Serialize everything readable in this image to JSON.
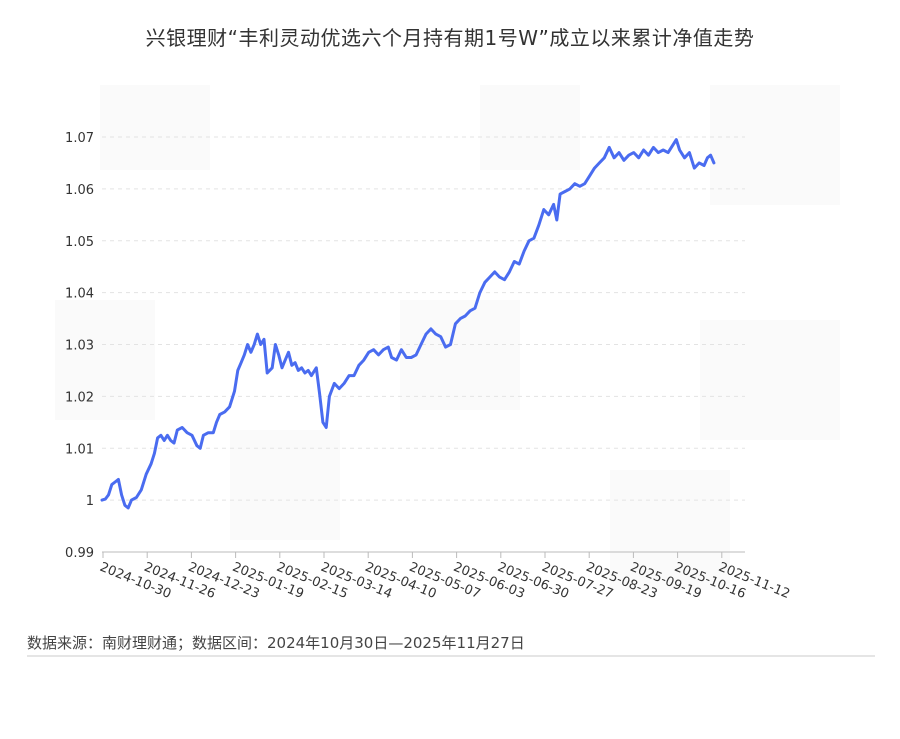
{
  "chart_data": {
    "type": "line",
    "title": "兴银理财“丰利灵动优选六个月持有期1号W”成立以来累计净值走势",
    "xlabel": "",
    "ylabel": "",
    "x_ticks": [
      "2024-10-30",
      "2024-11-26",
      "2024-12-23",
      "2025-01-19",
      "2025-02-15",
      "2025-03-14",
      "2025-04-10",
      "2025-05-07",
      "2025-06-03",
      "2025-06-30",
      "2025-07-27",
      "2025-08-23",
      "2025-09-19",
      "2025-10-16",
      "2025-11-12"
    ],
    "y_ticks": [
      "0.99",
      "1",
      "1.01",
      "1.02",
      "1.03",
      "1.04",
      "1.05",
      "1.06",
      "1.07"
    ],
    "ylim": [
      0.99,
      1.07
    ],
    "xlim": [
      "2024-10-30",
      "2025-11-27"
    ],
    "grid": true,
    "legend": "none",
    "line_color": "#4a6cf0",
    "series": [
      {
        "points": [
          [
            "2024-10-30",
            1.0
          ],
          [
            "2024-11-01",
            1.0002
          ],
          [
            "2024-11-03",
            1.001
          ],
          [
            "2024-11-05",
            1.003
          ],
          [
            "2024-11-07",
            1.0035
          ],
          [
            "2024-11-09",
            1.004
          ],
          [
            "2024-11-11",
            1.001
          ],
          [
            "2024-11-13",
            0.999
          ],
          [
            "2024-11-15",
            0.9985
          ],
          [
            "2024-11-17",
            1.0
          ],
          [
            "2024-11-20",
            1.0005
          ],
          [
            "2024-11-23",
            1.002
          ],
          [
            "2024-11-26",
            1.005
          ],
          [
            "2024-11-29",
            1.007
          ],
          [
            "2024-12-01",
            1.009
          ],
          [
            "2024-12-03",
            1.012
          ],
          [
            "2024-12-05",
            1.0125
          ],
          [
            "2024-12-07",
            1.0115
          ],
          [
            "2024-12-09",
            1.0125
          ],
          [
            "2024-12-11",
            1.0115
          ],
          [
            "2024-12-13",
            1.011
          ],
          [
            "2024-12-15",
            1.0135
          ],
          [
            "2024-12-18",
            1.014
          ],
          [
            "2024-12-21",
            1.013
          ],
          [
            "2024-12-24",
            1.0125
          ],
          [
            "2024-12-27",
            1.0105
          ],
          [
            "2024-12-29",
            1.01
          ],
          [
            "2024-12-31",
            1.0125
          ],
          [
            "2025-01-03",
            1.013
          ],
          [
            "2025-01-06",
            1.013
          ],
          [
            "2025-01-08",
            1.015
          ],
          [
            "2025-01-10",
            1.0165
          ],
          [
            "2025-01-13",
            1.017
          ],
          [
            "2025-01-16",
            1.018
          ],
          [
            "2025-01-19",
            1.021
          ],
          [
            "2025-01-21",
            1.025
          ],
          [
            "2025-01-23",
            1.0265
          ],
          [
            "2025-01-25",
            1.028
          ],
          [
            "2025-01-27",
            1.03
          ],
          [
            "2025-01-29",
            1.0285
          ],
          [
            "2025-01-31",
            1.03
          ],
          [
            "2025-02-02",
            1.032
          ],
          [
            "2025-02-04",
            1.03
          ],
          [
            "2025-02-06",
            1.031
          ],
          [
            "2025-02-08",
            1.0245
          ],
          [
            "2025-02-11",
            1.0255
          ],
          [
            "2025-02-13",
            1.03
          ],
          [
            "2025-02-15",
            1.028
          ],
          [
            "2025-02-17",
            1.0255
          ],
          [
            "2025-02-19",
            1.027
          ],
          [
            "2025-02-21",
            1.0285
          ],
          [
            "2025-02-23",
            1.026
          ],
          [
            "2025-02-25",
            1.0265
          ],
          [
            "2025-02-27",
            1.025
          ],
          [
            "2025-03-01",
            1.0255
          ],
          [
            "2025-03-03",
            1.0245
          ],
          [
            "2025-03-05",
            1.025
          ],
          [
            "2025-03-07",
            1.024
          ],
          [
            "2025-03-10",
            1.0255
          ],
          [
            "2025-03-12",
            1.0205
          ],
          [
            "2025-03-14",
            1.015
          ],
          [
            "2025-03-16",
            1.014
          ],
          [
            "2025-03-18",
            1.02
          ],
          [
            "2025-03-21",
            1.0225
          ],
          [
            "2025-03-24",
            1.0215
          ],
          [
            "2025-03-27",
            1.0225
          ],
          [
            "2025-03-30",
            1.024
          ],
          [
            "2025-04-02",
            1.024
          ],
          [
            "2025-04-05",
            1.026
          ],
          [
            "2025-04-08",
            1.027
          ],
          [
            "2025-04-11",
            1.0285
          ],
          [
            "2025-04-14",
            1.029
          ],
          [
            "2025-04-17",
            1.028
          ],
          [
            "2025-04-20",
            1.029
          ],
          [
            "2025-04-23",
            1.0295
          ],
          [
            "2025-04-25",
            1.0275
          ],
          [
            "2025-04-28",
            1.027
          ],
          [
            "2025-05-01",
            1.029
          ],
          [
            "2025-05-04",
            1.0275
          ],
          [
            "2025-05-07",
            1.0275
          ],
          [
            "2025-05-10",
            1.028
          ],
          [
            "2025-05-13",
            1.03
          ],
          [
            "2025-05-16",
            1.032
          ],
          [
            "2025-05-19",
            1.033
          ],
          [
            "2025-05-22",
            1.032
          ],
          [
            "2025-05-25",
            1.0315
          ],
          [
            "2025-05-28",
            1.0295
          ],
          [
            "2025-05-31",
            1.03
          ],
          [
            "2025-06-03",
            1.034
          ],
          [
            "2025-06-06",
            1.035
          ],
          [
            "2025-06-09",
            1.0355
          ],
          [
            "2025-06-12",
            1.0365
          ],
          [
            "2025-06-15",
            1.037
          ],
          [
            "2025-06-18",
            1.04
          ],
          [
            "2025-06-21",
            1.042
          ],
          [
            "2025-06-24",
            1.043
          ],
          [
            "2025-06-27",
            1.044
          ],
          [
            "2025-06-30",
            1.043
          ],
          [
            "2025-07-03",
            1.0425
          ],
          [
            "2025-07-06",
            1.044
          ],
          [
            "2025-07-09",
            1.046
          ],
          [
            "2025-07-12",
            1.0455
          ],
          [
            "2025-07-15",
            1.048
          ],
          [
            "2025-07-18",
            1.05
          ],
          [
            "2025-07-21",
            1.0505
          ],
          [
            "2025-07-24",
            1.053
          ],
          [
            "2025-07-27",
            1.056
          ],
          [
            "2025-07-30",
            1.055
          ],
          [
            "2025-08-02",
            1.057
          ],
          [
            "2025-08-04",
            1.054
          ],
          [
            "2025-08-06",
            1.059
          ],
          [
            "2025-08-09",
            1.0595
          ],
          [
            "2025-08-12",
            1.06
          ],
          [
            "2025-08-15",
            1.061
          ],
          [
            "2025-08-18",
            1.0605
          ],
          [
            "2025-08-21",
            1.061
          ],
          [
            "2025-08-24",
            1.0625
          ],
          [
            "2025-08-27",
            1.064
          ],
          [
            "2025-08-30",
            1.065
          ],
          [
            "2025-09-02",
            1.066
          ],
          [
            "2025-09-05",
            1.068
          ],
          [
            "2025-09-08",
            1.066
          ],
          [
            "2025-09-11",
            1.067
          ],
          [
            "2025-09-14",
            1.0655
          ],
          [
            "2025-09-17",
            1.0665
          ],
          [
            "2025-09-20",
            1.067
          ],
          [
            "2025-09-23",
            1.066
          ],
          [
            "2025-09-26",
            1.0675
          ],
          [
            "2025-09-29",
            1.0665
          ],
          [
            "2025-10-02",
            1.068
          ],
          [
            "2025-10-05",
            1.067
          ],
          [
            "2025-10-08",
            1.0675
          ],
          [
            "2025-10-11",
            1.067
          ],
          [
            "2025-10-14",
            1.0685
          ],
          [
            "2025-10-16",
            1.0695
          ],
          [
            "2025-10-18",
            1.0675
          ],
          [
            "2025-10-21",
            1.066
          ],
          [
            "2025-10-24",
            1.067
          ],
          [
            "2025-10-27",
            1.064
          ],
          [
            "2025-10-30",
            1.065
          ],
          [
            "2025-11-02",
            1.0645
          ],
          [
            "2025-11-04",
            1.066
          ],
          [
            "2025-11-06",
            1.0665
          ],
          [
            "2025-11-08",
            1.065
          ]
        ]
      }
    ]
  },
  "source": {
    "text": "数据来源：南财理财通；数据区间：2024年10月30日—2025年11月27日"
  }
}
